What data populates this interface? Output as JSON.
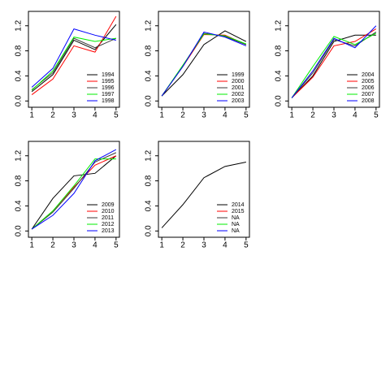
{
  "chart_data": [
    {
      "type": "line",
      "x": [
        1,
        2,
        3,
        4,
        5
      ],
      "xlim": [
        0.84,
        5.16
      ],
      "xticks": [
        1,
        2,
        3,
        4,
        5
      ],
      "ylim": [
        -0.1,
        1.43
      ],
      "yticks": [
        {
          "value": 0,
          "label": "0.0"
        },
        0.4,
        0.8,
        1.2
      ],
      "legend": "bottomright",
      "series": [
        {
          "name": "1994",
          "color": "#000000",
          "values": [
            0.15,
            0.42,
            0.97,
            0.82,
            1.22
          ]
        },
        {
          "name": "1995",
          "color": "#ff0000",
          "values": [
            0.1,
            0.35,
            0.88,
            0.78,
            1.35
          ]
        },
        {
          "name": "1996",
          "color": "#3a3a3a",
          "values": [
            0.18,
            0.45,
            1.0,
            0.85,
            1.0
          ]
        },
        {
          "name": "1997",
          "color": "#00ee00",
          "values": [
            0.17,
            0.48,
            1.02,
            0.95,
            1.0
          ]
        },
        {
          "name": "1998",
          "color": "#0000ff",
          "values": [
            0.22,
            0.52,
            1.15,
            1.05,
            0.97
          ]
        }
      ]
    },
    {
      "type": "line",
      "x": [
        1,
        2,
        3,
        4,
        5
      ],
      "xlim": [
        0.84,
        5.16
      ],
      "xticks": [
        1,
        2,
        3,
        4,
        5
      ],
      "ylim": [
        -0.1,
        1.43
      ],
      "yticks": [
        {
          "value": 0,
          "label": "0.0"
        },
        0.4,
        0.8,
        1.2
      ],
      "legend": "bottomright",
      "series": [
        {
          "name": "1999",
          "color": "#000000",
          "values": [
            0.08,
            0.42,
            0.9,
            1.12,
            0.95
          ]
        },
        {
          "name": "2000",
          "color": "#ff0000",
          "values": [
            0.08,
            0.55,
            1.06,
            1.05,
            0.9
          ]
        },
        {
          "name": "2001",
          "color": "#3a3a3a",
          "values": [
            0.08,
            0.56,
            1.08,
            1.03,
            0.9
          ]
        },
        {
          "name": "2002",
          "color": "#00ee00",
          "values": [
            0.08,
            0.57,
            1.07,
            1.04,
            0.91
          ]
        },
        {
          "name": "2003",
          "color": "#0000ff",
          "values": [
            0.08,
            0.55,
            1.1,
            1.02,
            0.88
          ]
        }
      ]
    },
    {
      "type": "line",
      "x": [
        1,
        2,
        3,
        4,
        5
      ],
      "xlim": [
        0.84,
        5.16
      ],
      "xticks": [
        1,
        2,
        3,
        4,
        5
      ],
      "ylim": [
        -0.1,
        1.43
      ],
      "yticks": [
        {
          "value": 0,
          "label": "0.0"
        },
        0.4,
        0.8,
        1.2
      ],
      "legend": "bottomright",
      "series": [
        {
          "name": "2004",
          "color": "#000000",
          "values": [
            0.05,
            0.4,
            0.95,
            1.05,
            1.05
          ]
        },
        {
          "name": "2005",
          "color": "#ff0000",
          "values": [
            0.05,
            0.38,
            0.88,
            0.95,
            1.15
          ]
        },
        {
          "name": "2006",
          "color": "#3a3a3a",
          "values": [
            0.05,
            0.45,
            0.98,
            0.88,
            1.1
          ]
        },
        {
          "name": "2007",
          "color": "#00ee00",
          "values": [
            0.05,
            0.55,
            1.03,
            0.9,
            1.08
          ]
        },
        {
          "name": "2008",
          "color": "#0000ff",
          "values": [
            0.05,
            0.48,
            1.0,
            0.85,
            1.2
          ]
        }
      ]
    },
    {
      "type": "line",
      "x": [
        1,
        2,
        3,
        4,
        5
      ],
      "xlim": [
        0.84,
        5.16
      ],
      "xticks": [
        1,
        2,
        3,
        4,
        5
      ],
      "ylim": [
        -0.1,
        1.43
      ],
      "yticks": [
        {
          "value": 0,
          "label": "0.0"
        },
        0.4,
        0.8,
        1.2
      ],
      "legend": "bottomright",
      "series": [
        {
          "name": "2009",
          "color": "#000000",
          "values": [
            0.03,
            0.52,
            0.88,
            0.92,
            1.2
          ]
        },
        {
          "name": "2010",
          "color": "#ff0000",
          "values": [
            0.03,
            0.32,
            0.7,
            1.05,
            1.2
          ]
        },
        {
          "name": "2011",
          "color": "#3a3a3a",
          "values": [
            0.03,
            0.3,
            0.68,
            1.1,
            1.25
          ]
        },
        {
          "name": "2012",
          "color": "#00ee00",
          "values": [
            0.03,
            0.32,
            0.72,
            1.15,
            1.15
          ]
        },
        {
          "name": "2013",
          "color": "#0000ff",
          "values": [
            0.03,
            0.25,
            0.6,
            1.12,
            1.3
          ]
        }
      ]
    },
    {
      "type": "line",
      "x": [
        1,
        2,
        3,
        4,
        5
      ],
      "xlim": [
        0.84,
        5.16
      ],
      "xticks": [
        1,
        2,
        3,
        4,
        5
      ],
      "ylim": [
        -0.1,
        1.43
      ],
      "yticks": [
        {
          "value": 0,
          "label": "0.0"
        },
        0.4,
        0.8,
        1.2
      ],
      "legend": "bottomright",
      "series": [
        {
          "name": "2014",
          "color": "#000000",
          "values": [
            0.05,
            0.42,
            0.85,
            1.03,
            1.1
          ]
        },
        {
          "name": "2015",
          "color": "#ff0000",
          "values": [
            null,
            null,
            null,
            null,
            null
          ]
        },
        {
          "name": "NA",
          "color": "#3a3a3a",
          "values": [
            null,
            null,
            null,
            null,
            null
          ]
        },
        {
          "name": "NA",
          "color": "#00ee00",
          "values": [
            null,
            null,
            null,
            null,
            null
          ]
        },
        {
          "name": "NA",
          "color": "#0000ff",
          "values": [
            null,
            null,
            null,
            null,
            null
          ]
        }
      ]
    }
  ]
}
